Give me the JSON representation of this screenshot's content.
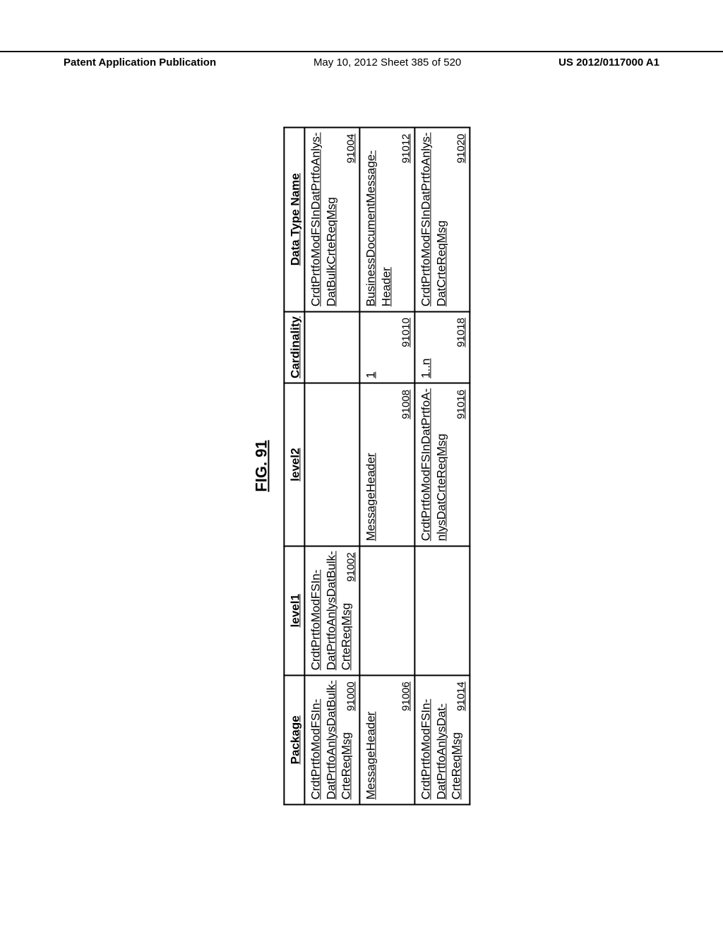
{
  "header": {
    "left": "Patent Application Publication",
    "center": "May 10, 2012  Sheet 385 of 520",
    "right": "US 2012/0117000 A1"
  },
  "figure": {
    "title": "FIG. 91",
    "columns": [
      "Package",
      "level1",
      "level2",
      "Cardinality",
      "Data Type Name"
    ],
    "rows": [
      {
        "package": {
          "text": "CrdtPrtfoModFSIn-\nDatPrtfoAnlysDatBulk-\nCrteReqMsg",
          "ref": "91000"
        },
        "level1": {
          "text": "CrdtPrtfoModFSIn-\nDatPrtfoAnlysDatBulk-\nCrteReqMsg",
          "ref": "91002"
        },
        "level2": {
          "text": "",
          "ref": ""
        },
        "card": {
          "text": "",
          "ref": ""
        },
        "dtype": {
          "text": "CrdtPrtfoModFSInDatPrtfoAnlys-\nDatBulkCrteReqMsg",
          "ref": "91004"
        }
      },
      {
        "package": {
          "text": "MessageHeader",
          "ref": "91006"
        },
        "level1": {
          "text": "",
          "ref": ""
        },
        "level2": {
          "text": "MessageHeader",
          "ref": "91008"
        },
        "card": {
          "text": "1",
          "ref": "91010"
        },
        "dtype": {
          "text": "BusinessDocumentMessage-\nHeader",
          "ref": "91012"
        }
      },
      {
        "package": {
          "text": "CrdtPrtfoModFSIn-\nDatPrtfoAnlysDat-\nCrteReqMsg",
          "ref": "91014"
        },
        "level1": {
          "text": "",
          "ref": ""
        },
        "level2": {
          "text": "CrdtPrtfoModFSInDatPrtfoA-\nnlysDatCrteReqMsg",
          "ref": "91016"
        },
        "card": {
          "text": "1..n",
          "ref": "91018"
        },
        "dtype": {
          "text": "CrdtPrtfoModFSInDatPrtfoAnlys-\nDatCrteReqMsg",
          "ref": "91020"
        }
      }
    ]
  }
}
